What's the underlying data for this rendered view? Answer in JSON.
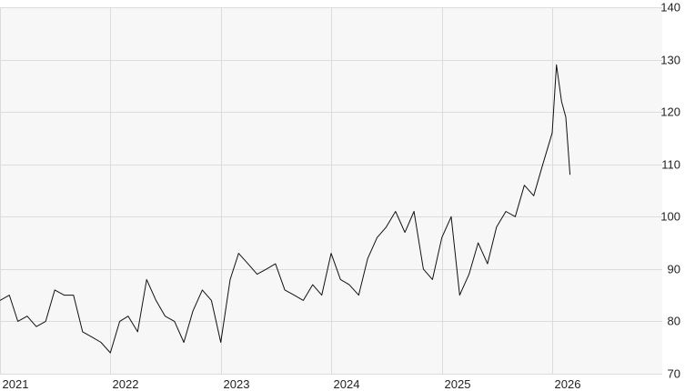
{
  "chart_data": {
    "type": "line",
    "title": "",
    "xlabel": "",
    "ylabel": "",
    "x_ticks": [
      "2021",
      "2022",
      "2023",
      "2024",
      "2025",
      "2026"
    ],
    "y_ticks": [
      "70",
      "80",
      "90",
      "100",
      "110",
      "120",
      "130",
      "140"
    ],
    "ylim": [
      70,
      140
    ],
    "xlim": [
      "2021-01-01",
      "2026-12-31"
    ],
    "grid": true,
    "y_axis_position": "right",
    "legend": "none",
    "colors": {
      "line": "#111111",
      "grid": "#dcdcdc",
      "background": "#f7f7f7"
    },
    "series": [
      {
        "x": [
          "2021-01-01",
          "2021-02-01",
          "2021-03-01",
          "2021-04-01",
          "2021-05-01",
          "2021-06-01",
          "2021-07-01",
          "2021-08-01",
          "2021-09-01",
          "2021-10-01",
          "2021-11-01",
          "2021-12-01",
          "2022-01-01",
          "2022-02-01",
          "2022-03-01",
          "2022-04-01",
          "2022-05-01",
          "2022-06-01",
          "2022-07-01",
          "2022-08-01",
          "2022-09-01",
          "2022-10-01",
          "2022-11-01",
          "2022-12-01",
          "2023-01-01",
          "2023-02-01",
          "2023-03-01",
          "2023-04-01",
          "2023-05-01",
          "2023-06-01",
          "2023-07-01",
          "2023-08-01",
          "2023-09-01",
          "2023-10-01",
          "2023-11-01",
          "2023-12-01",
          "2024-01-01",
          "2024-02-01",
          "2024-03-01",
          "2024-04-01",
          "2024-05-01",
          "2024-06-01",
          "2024-07-01",
          "2024-08-01",
          "2024-09-01",
          "2024-10-01",
          "2024-11-01",
          "2024-12-01",
          "2025-01-01",
          "2025-02-01",
          "2025-03-01",
          "2025-04-01",
          "2025-05-01",
          "2025-06-01",
          "2025-07-01",
          "2025-08-01",
          "2025-09-01",
          "2025-10-01",
          "2025-11-01",
          "2025-12-01",
          "2026-01-01",
          "2026-01-15",
          "2026-02-01",
          "2026-02-15",
          "2026-03-01"
        ],
        "y": [
          84,
          85,
          80,
          81,
          79,
          80,
          86,
          85,
          85,
          78,
          77,
          76,
          74,
          80,
          81,
          78,
          88,
          84,
          81,
          80,
          76,
          82,
          86,
          84,
          76,
          88,
          93,
          91,
          89,
          90,
          91,
          86,
          85,
          84,
          87,
          85,
          93,
          88,
          87,
          85,
          92,
          96,
          98,
          101,
          97,
          101,
          90,
          88,
          96,
          100,
          85,
          89,
          95,
          91,
          98,
          101,
          100,
          106,
          104,
          110,
          116,
          129,
          122,
          119,
          108
        ]
      }
    ]
  }
}
